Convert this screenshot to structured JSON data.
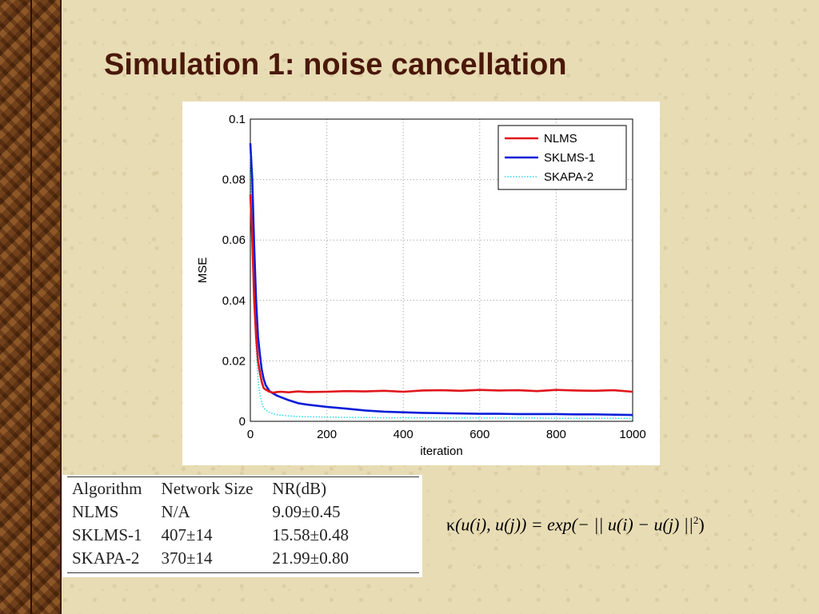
{
  "title": "Simulation 1: noise cancellation",
  "chart_data": {
    "type": "line",
    "xlabel": "iteration",
    "ylabel": "MSE",
    "xlim": [
      0,
      1000
    ],
    "ylim": [
      0,
      0.1
    ],
    "xticks": [
      "0",
      "200",
      "400",
      "600",
      "800",
      "1000"
    ],
    "yticks": [
      "0",
      "0.02",
      "0.04",
      "0.06",
      "0.08",
      "0.1"
    ],
    "grid": true,
    "legend_position": "top-right",
    "x": [
      0,
      5,
      10,
      15,
      20,
      25,
      30,
      35,
      40,
      50,
      60,
      70,
      80,
      100,
      125,
      150,
      200,
      250,
      300,
      350,
      400,
      450,
      500,
      550,
      600,
      650,
      700,
      750,
      800,
      850,
      900,
      950,
      1000
    ],
    "series": [
      {
        "name": "NLMS",
        "color": "#e0161c",
        "values": [
          0.075,
          0.06,
          0.04,
          0.028,
          0.02,
          0.016,
          0.013,
          0.011,
          0.0105,
          0.0098,
          0.0095,
          0.0097,
          0.0098,
          0.0096,
          0.0099,
          0.0097,
          0.0098,
          0.01,
          0.0099,
          0.0101,
          0.0098,
          0.0102,
          0.0103,
          0.0101,
          0.0104,
          0.0102,
          0.0103,
          0.01,
          0.0104,
          0.0102,
          0.0101,
          0.0103,
          0.0098
        ]
      },
      {
        "name": "SKLMS-1",
        "color": "#0a1ed8",
        "values": [
          0.092,
          0.08,
          0.058,
          0.04,
          0.028,
          0.022,
          0.017,
          0.014,
          0.012,
          0.01,
          0.0092,
          0.0085,
          0.008,
          0.007,
          0.006,
          0.0055,
          0.0048,
          0.0042,
          0.0036,
          0.0032,
          0.003,
          0.0028,
          0.0027,
          0.0026,
          0.0025,
          0.0025,
          0.0024,
          0.0024,
          0.0024,
          0.0023,
          0.0023,
          0.0022,
          0.0021
        ]
      },
      {
        "name": "SKAPA-2",
        "color": "#22d8e8",
        "values": [
          0.09,
          0.065,
          0.04,
          0.024,
          0.014,
          0.009,
          0.006,
          0.0045,
          0.0038,
          0.003,
          0.0025,
          0.0022,
          0.002,
          0.0018,
          0.0016,
          0.0015,
          0.0014,
          0.0013,
          0.0013,
          0.0012,
          0.0012,
          0.0012,
          0.0011,
          0.0011,
          0.0011,
          0.0011,
          0.0011,
          0.0011,
          0.001,
          0.001,
          0.001,
          0.001,
          0.001
        ]
      }
    ]
  },
  "table": {
    "headers": [
      "Algorithm",
      "Network Size",
      "NR(dB)"
    ],
    "rows": [
      [
        "NLMS",
        "N/A",
        "9.09±0.45"
      ],
      [
        "SKLMS-1",
        "407±14",
        "15.58±0.48"
      ],
      [
        "SKAPA-2",
        "370±14",
        "21.99±0.80"
      ]
    ]
  },
  "formula": {
    "kappa": "κ",
    "args": "(u(i), u(j)) = exp(− || u(i) − u(j) ||",
    "power": "2",
    "close": ")"
  }
}
